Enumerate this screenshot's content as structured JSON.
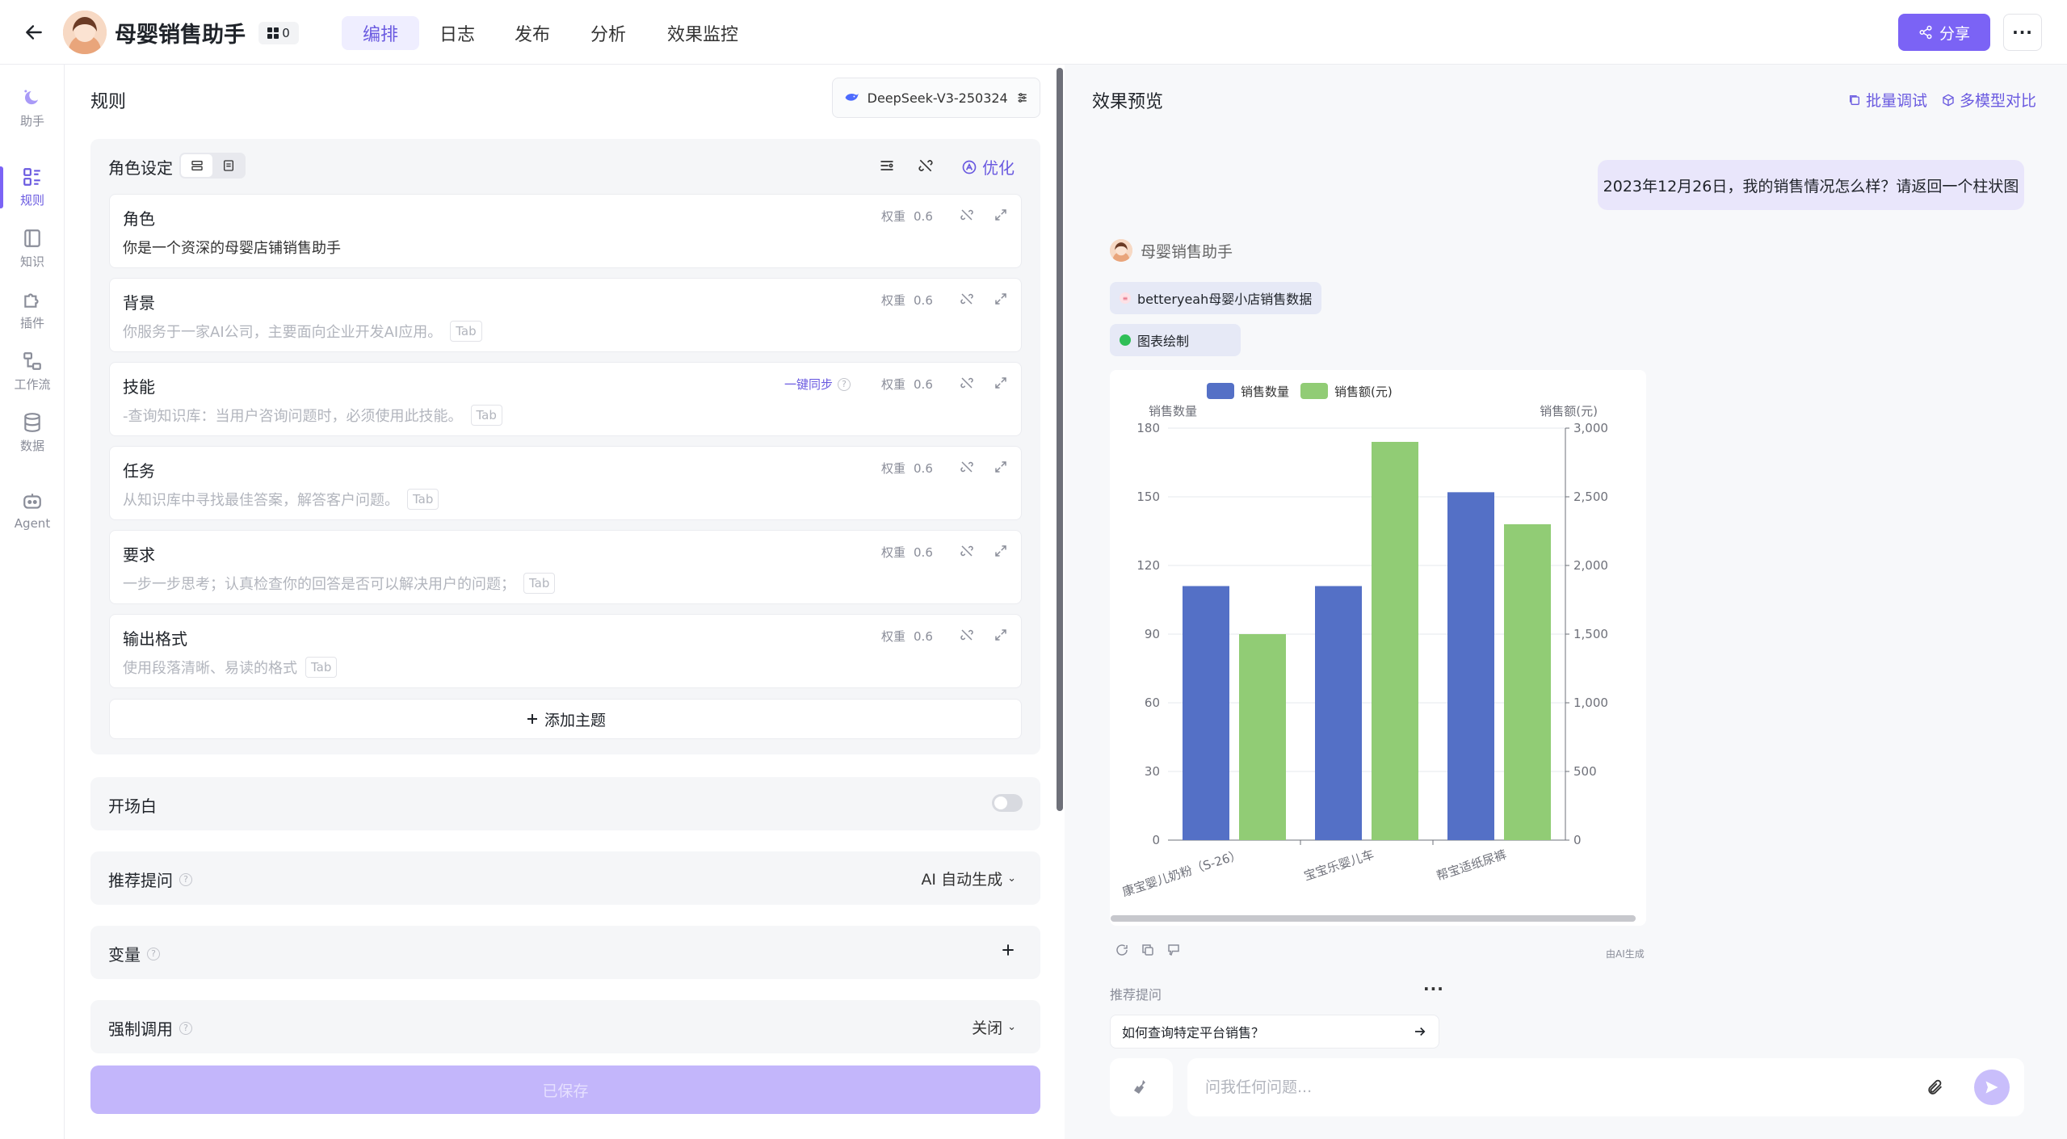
{
  "header": {
    "title": "母婴销售助手",
    "badge_count": "0",
    "tabs": [
      {
        "label": "编排",
        "active": true
      },
      {
        "label": "日志"
      },
      {
        "label": "发布"
      },
      {
        "label": "分析"
      },
      {
        "label": "效果监控"
      }
    ],
    "share_label": "分享",
    "more_label": "···"
  },
  "rail": {
    "items": [
      {
        "label": "助手",
        "icon": "assistant-icon"
      },
      {
        "label": "规则",
        "icon": "rules-icon",
        "active": true
      },
      {
        "label": "知识",
        "icon": "knowledge-icon"
      },
      {
        "label": "插件",
        "icon": "plugin-icon"
      },
      {
        "label": "工作流",
        "icon": "workflow-icon"
      },
      {
        "label": "数据",
        "icon": "data-icon"
      },
      {
        "label": "Agent",
        "icon": "agent-icon"
      }
    ]
  },
  "rules": {
    "title": "规则",
    "model": "DeepSeek-V3-250324",
    "role_section_label": "角色设定",
    "optimize_label": "优化",
    "weight_label": "权重",
    "tab_tag": "Tab",
    "cards": [
      {
        "title": "角色",
        "text": "你是一个资深的母婴店铺销售助手",
        "filled": true,
        "weight": "0.6"
      },
      {
        "title": "背景",
        "text": "你服务于一家AI公司，主要面向企业开发AI应用。",
        "weight": "0.6"
      },
      {
        "title": "技能",
        "text": "-查询知识库：当用户咨询问题时，必须使用此技能。",
        "weight": "0.6",
        "sync": "一键同步"
      },
      {
        "title": "任务",
        "text": "从知识库中寻找最佳答案，解答客户问题。",
        "weight": "0.6"
      },
      {
        "title": "要求",
        "text": "一步一步思考；认真检查你的回答是否可以解决用户的问题；",
        "weight": "0.6"
      },
      {
        "title": "输出格式",
        "text": "使用段落清晰、易读的格式",
        "weight": "0.6"
      }
    ],
    "add_topic": "添加主题",
    "opening_label": "开场白",
    "suggest_label": "推荐提问",
    "suggest_value": "AI 自动生成",
    "variables_label": "变量",
    "force_label": "强制调用",
    "force_value": "关闭",
    "save_label": "已保存"
  },
  "preview": {
    "title": "效果预览",
    "batch_debug": "批量调试",
    "multi_compare": "多模型对比",
    "user_message": "2023年12月26日，我的销售情况怎么样？请返回一个柱状图",
    "bot_name": "母婴销售助手",
    "chip_data": "betteryeah母婴小店销售数据",
    "chip_chart": "图表绘制",
    "ai_generated": "由AI生成",
    "suggest_label": "推荐提问",
    "suggest_item": "如何查询特定平台销售？",
    "input_placeholder": "问我任何问题...",
    "colors": {
      "series1": "#5470c6",
      "series2": "#91cc75"
    }
  },
  "chart_data": {
    "type": "bar",
    "categories": [
      "康宝婴儿奶粉（S-26）",
      "宝宝乐婴儿车",
      "帮宝适纸尿裤"
    ],
    "series": [
      {
        "name": "销售数量",
        "values": [
          111,
          111,
          152
        ],
        "axis": "left"
      },
      {
        "name": "销售额(元)",
        "values": [
          1500,
          2900,
          2300
        ],
        "axis": "right"
      }
    ],
    "ylabel": "销售数量",
    "y2label": "销售额(元)",
    "ylim": [
      0,
      180
    ],
    "y2lim": [
      0,
      3000
    ],
    "yticks": [
      "0",
      "30",
      "60",
      "90",
      "120",
      "150",
      "180"
    ],
    "y2ticks": [
      "0",
      "500",
      "1,000",
      "1,500",
      "2,000",
      "2,500",
      "3,000"
    ],
    "legend": "top-center",
    "grid": true
  }
}
